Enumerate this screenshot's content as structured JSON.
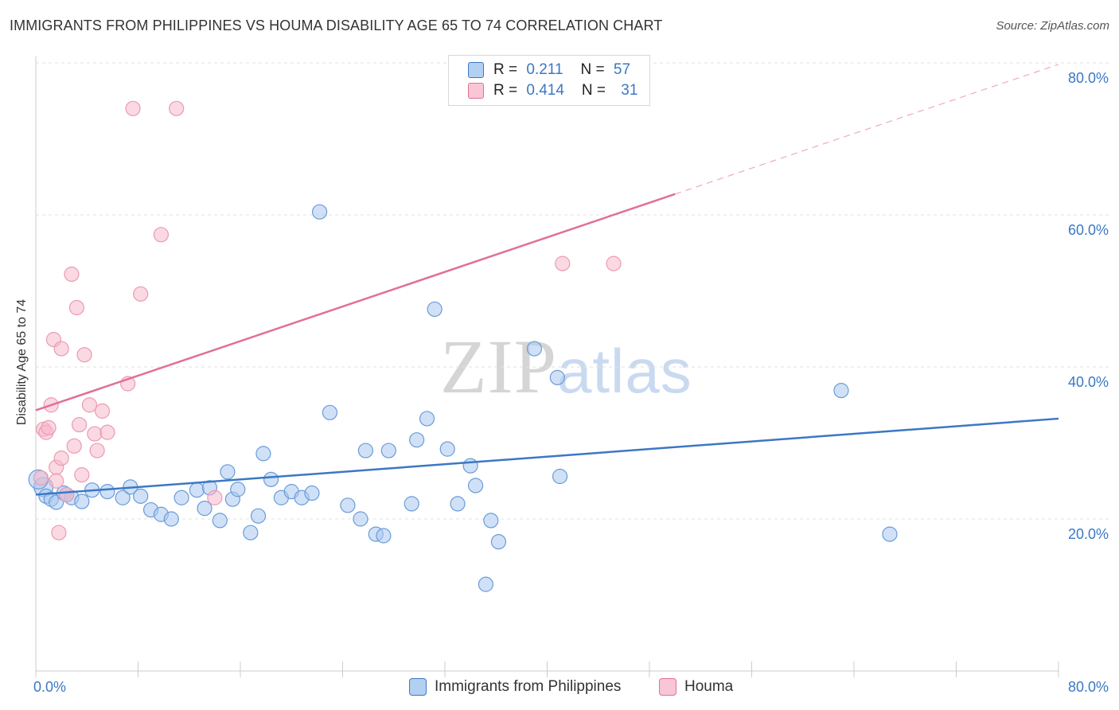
{
  "title": "IMMIGRANTS FROM PHILIPPINES VS HOUMA DISABILITY AGE 65 TO 74 CORRELATION CHART",
  "source": "Source: ZipAtlas.com",
  "watermark": {
    "zip": "ZIP",
    "atlas": "atlas"
  },
  "legend": {
    "rows": [
      {
        "r_label": "R = ",
        "r_value": "0.211",
        "n_label": "N = ",
        "n_value": "57"
      },
      {
        "r_label": "R = ",
        "r_value": "0.414",
        "n_label": "N = ",
        "n_value": "31"
      }
    ]
  },
  "chart_data": {
    "type": "scatter",
    "title": "IMMIGRANTS FROM PHILIPPINES VS HOUMA DISABILITY AGE 65 TO 74 CORRELATION CHART",
    "xlabel": "",
    "ylabel": "Disability Age 65 to 74",
    "xlim": [
      0,
      80
    ],
    "ylim": [
      0,
      82
    ],
    "x_tick_labels": [
      "0.0%",
      "80.0%"
    ],
    "y_ticks": [
      20,
      40,
      60,
      80
    ],
    "y_tick_labels": [
      "20.0%",
      "40.0%",
      "60.0%",
      "80.0%"
    ],
    "grid": true,
    "legend_position": "top-center",
    "colors": {
      "blue": "#3b78c4",
      "blue_fill": "#a9c8f0",
      "pink": "#e07098",
      "pink_fill": "#f5b9cb",
      "grid": "#e2e2e2"
    },
    "series": [
      {
        "name": "Immigrants from Philippines",
        "color": "#3b78c4",
        "trend": {
          "x": [
            0,
            80
          ],
          "y": [
            23.2,
            33.2
          ],
          "dashed_from": null
        },
        "points": [
          [
            0.6,
            24.2
          ],
          [
            0.8,
            23.0
          ],
          [
            1.2,
            22.6
          ],
          [
            1.6,
            22.2
          ],
          [
            2.2,
            23.4
          ],
          [
            2.8,
            22.8
          ],
          [
            3.6,
            22.3
          ],
          [
            4.4,
            23.8
          ],
          [
            5.6,
            23.6
          ],
          [
            6.8,
            22.8
          ],
          [
            7.4,
            24.2
          ],
          [
            8.2,
            23.0
          ],
          [
            9.0,
            21.2
          ],
          [
            9.8,
            20.6
          ],
          [
            10.6,
            20.0
          ],
          [
            11.4,
            22.8
          ],
          [
            12.6,
            23.8
          ],
          [
            13.2,
            21.4
          ],
          [
            13.6,
            24.1
          ],
          [
            14.4,
            19.8
          ],
          [
            15.0,
            26.2
          ],
          [
            15.4,
            22.6
          ],
          [
            15.8,
            23.9
          ],
          [
            16.8,
            18.2
          ],
          [
            17.4,
            20.4
          ],
          [
            17.8,
            28.6
          ],
          [
            18.4,
            25.2
          ],
          [
            19.2,
            22.8
          ],
          [
            20.0,
            23.6
          ],
          [
            20.8,
            22.8
          ],
          [
            21.6,
            23.4
          ],
          [
            22.2,
            60.4
          ],
          [
            23.0,
            34.0
          ],
          [
            24.4,
            21.8
          ],
          [
            25.4,
            20.0
          ],
          [
            25.8,
            29.0
          ],
          [
            26.6,
            18.0
          ],
          [
            27.2,
            17.8
          ],
          [
            27.6,
            29.0
          ],
          [
            29.4,
            22.0
          ],
          [
            29.8,
            30.4
          ],
          [
            30.6,
            33.2
          ],
          [
            31.2,
            47.6
          ],
          [
            32.2,
            29.2
          ],
          [
            33.0,
            22.0
          ],
          [
            34.0,
            27.0
          ],
          [
            34.4,
            24.4
          ],
          [
            35.6,
            19.8
          ],
          [
            36.2,
            17.0
          ],
          [
            35.2,
            11.4
          ],
          [
            39.0,
            42.4
          ],
          [
            40.8,
            38.6
          ],
          [
            41.0,
            25.6
          ],
          [
            63.0,
            36.9
          ],
          [
            66.8,
            18.0
          ],
          [
            0.2,
            25.2
          ],
          [
            2.4,
            23.2
          ]
        ]
      },
      {
        "name": "Houma",
        "color": "#e07098",
        "trend": {
          "x": [
            0,
            80
          ],
          "y": [
            34.3,
            79.8
          ],
          "dashed_from": 50
        },
        "points": [
          [
            0.4,
            25.4
          ],
          [
            0.6,
            31.8
          ],
          [
            0.8,
            31.4
          ],
          [
            1.0,
            32.0
          ],
          [
            1.2,
            35.0
          ],
          [
            1.4,
            43.6
          ],
          [
            1.6,
            26.8
          ],
          [
            1.6,
            25.0
          ],
          [
            1.8,
            18.2
          ],
          [
            2.0,
            28.0
          ],
          [
            2.0,
            42.4
          ],
          [
            2.4,
            23.2
          ],
          [
            2.8,
            52.2
          ],
          [
            3.0,
            29.6
          ],
          [
            3.2,
            47.8
          ],
          [
            3.4,
            32.4
          ],
          [
            3.6,
            25.8
          ],
          [
            3.8,
            41.6
          ],
          [
            4.2,
            35.0
          ],
          [
            4.6,
            31.2
          ],
          [
            4.8,
            29.0
          ],
          [
            5.2,
            34.2
          ],
          [
            5.6,
            31.4
          ],
          [
            7.2,
            37.8
          ],
          [
            7.6,
            74.0
          ],
          [
            8.2,
            49.6
          ],
          [
            9.8,
            57.4
          ],
          [
            11.0,
            74.0
          ],
          [
            14.0,
            22.8
          ],
          [
            41.2,
            53.6
          ],
          [
            45.2,
            53.6
          ]
        ]
      }
    ]
  }
}
